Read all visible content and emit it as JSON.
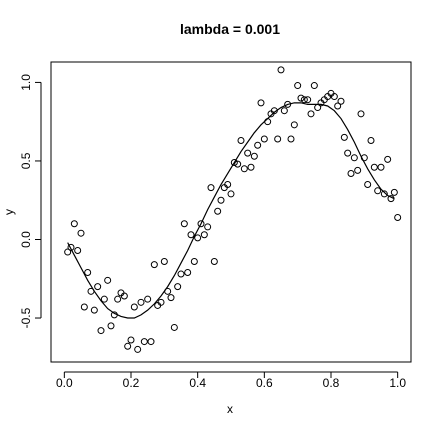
{
  "chart_data": {
    "type": "scatter",
    "title": "lambda = 0.001",
    "xlabel": "x",
    "ylabel": "y",
    "xlim": [
      -0.04,
      1.04
    ],
    "ylim": [
      -0.78,
      1.13
    ],
    "x_ticks": [
      0.0,
      0.2,
      0.4,
      0.6,
      0.8,
      1.0
    ],
    "x_tick_labels": [
      "0.0",
      "0.2",
      "0.4",
      "0.6",
      "0.8",
      "1.0"
    ],
    "y_ticks": [
      -0.5,
      0.0,
      0.5,
      1.0
    ],
    "y_tick_labels": [
      "-0.5",
      "0.0",
      "0.5",
      "1.0"
    ],
    "grid": false,
    "series": [
      {
        "type": "scatter",
        "marker": "open-circle",
        "x": [
          0.01,
          0.02,
          0.03,
          0.04,
          0.05,
          0.06,
          0.07,
          0.08,
          0.09,
          0.1,
          0.11,
          0.12,
          0.13,
          0.14,
          0.15,
          0.16,
          0.17,
          0.18,
          0.19,
          0.2,
          0.21,
          0.22,
          0.23,
          0.24,
          0.25,
          0.26,
          0.27,
          0.28,
          0.29,
          0.3,
          0.31,
          0.32,
          0.33,
          0.34,
          0.35,
          0.36,
          0.37,
          0.38,
          0.39,
          0.4,
          0.41,
          0.42,
          0.43,
          0.44,
          0.45,
          0.46,
          0.47,
          0.48,
          0.49,
          0.5,
          0.51,
          0.52,
          0.53,
          0.54,
          0.55,
          0.56,
          0.57,
          0.58,
          0.59,
          0.6,
          0.61,
          0.62,
          0.63,
          0.64,
          0.65,
          0.66,
          0.67,
          0.68,
          0.69,
          0.7,
          0.71,
          0.72,
          0.73,
          0.74,
          0.75,
          0.76,
          0.77,
          0.78,
          0.79,
          0.8,
          0.81,
          0.82,
          0.83,
          0.84,
          0.85,
          0.86,
          0.87,
          0.88,
          0.89,
          0.9,
          0.91,
          0.92,
          0.93,
          0.94,
          0.95,
          0.96,
          0.97,
          0.98,
          0.99,
          1.0
        ],
        "y": [
          -0.08,
          -0.05,
          0.1,
          -0.07,
          0.04,
          -0.43,
          -0.21,
          -0.33,
          -0.45,
          -0.3,
          -0.58,
          -0.38,
          -0.26,
          -0.55,
          -0.48,
          -0.38,
          -0.34,
          -0.36,
          -0.68,
          -0.64,
          -0.43,
          -0.7,
          -0.4,
          -0.65,
          -0.38,
          -0.65,
          -0.16,
          -0.42,
          -0.4,
          -0.14,
          -0.33,
          -0.37,
          -0.56,
          -0.3,
          -0.22,
          0.1,
          -0.21,
          0.03,
          -0.14,
          0.01,
          0.1,
          0.03,
          0.08,
          0.33,
          -0.14,
          0.18,
          0.25,
          0.33,
          0.35,
          0.29,
          0.49,
          0.48,
          0.63,
          0.45,
          0.55,
          0.46,
          0.53,
          0.6,
          0.87,
          0.64,
          0.75,
          0.8,
          0.82,
          0.64,
          1.08,
          0.82,
          0.86,
          0.64,
          0.73,
          0.98,
          0.9,
          0.89,
          0.89,
          0.8,
          0.98,
          0.84,
          0.87,
          0.89,
          0.91,
          0.93,
          0.91,
          0.85,
          0.88,
          0.65,
          0.55,
          0.42,
          0.52,
          0.44,
          0.8,
          0.52,
          0.35,
          0.63,
          0.46,
          0.31,
          0.46,
          0.29,
          0.51,
          0.26,
          0.3,
          0.14
        ]
      },
      {
        "type": "line",
        "x": [
          0.01,
          0.03,
          0.05,
          0.07,
          0.09,
          0.11,
          0.13,
          0.15,
          0.17,
          0.19,
          0.21,
          0.23,
          0.25,
          0.27,
          0.29,
          0.31,
          0.33,
          0.35,
          0.37,
          0.39,
          0.41,
          0.43,
          0.45,
          0.47,
          0.49,
          0.51,
          0.53,
          0.55,
          0.57,
          0.59,
          0.61,
          0.63,
          0.65,
          0.67,
          0.69,
          0.71,
          0.73,
          0.75,
          0.77,
          0.79,
          0.81,
          0.83,
          0.85,
          0.87,
          0.89,
          0.91,
          0.93,
          0.95,
          0.97,
          0.99
        ],
        "y": [
          -0.02,
          -0.1,
          -0.18,
          -0.26,
          -0.33,
          -0.39,
          -0.44,
          -0.47,
          -0.49,
          -0.5,
          -0.5,
          -0.48,
          -0.45,
          -0.41,
          -0.36,
          -0.3,
          -0.23,
          -0.15,
          -0.07,
          0.02,
          0.1,
          0.19,
          0.27,
          0.35,
          0.42,
          0.49,
          0.56,
          0.62,
          0.68,
          0.73,
          0.77,
          0.81,
          0.84,
          0.86,
          0.87,
          0.87,
          0.86,
          0.86,
          0.86,
          0.85,
          0.82,
          0.77,
          0.7,
          0.62,
          0.53,
          0.45,
          0.38,
          0.32,
          0.28,
          0.26
        ]
      }
    ]
  }
}
